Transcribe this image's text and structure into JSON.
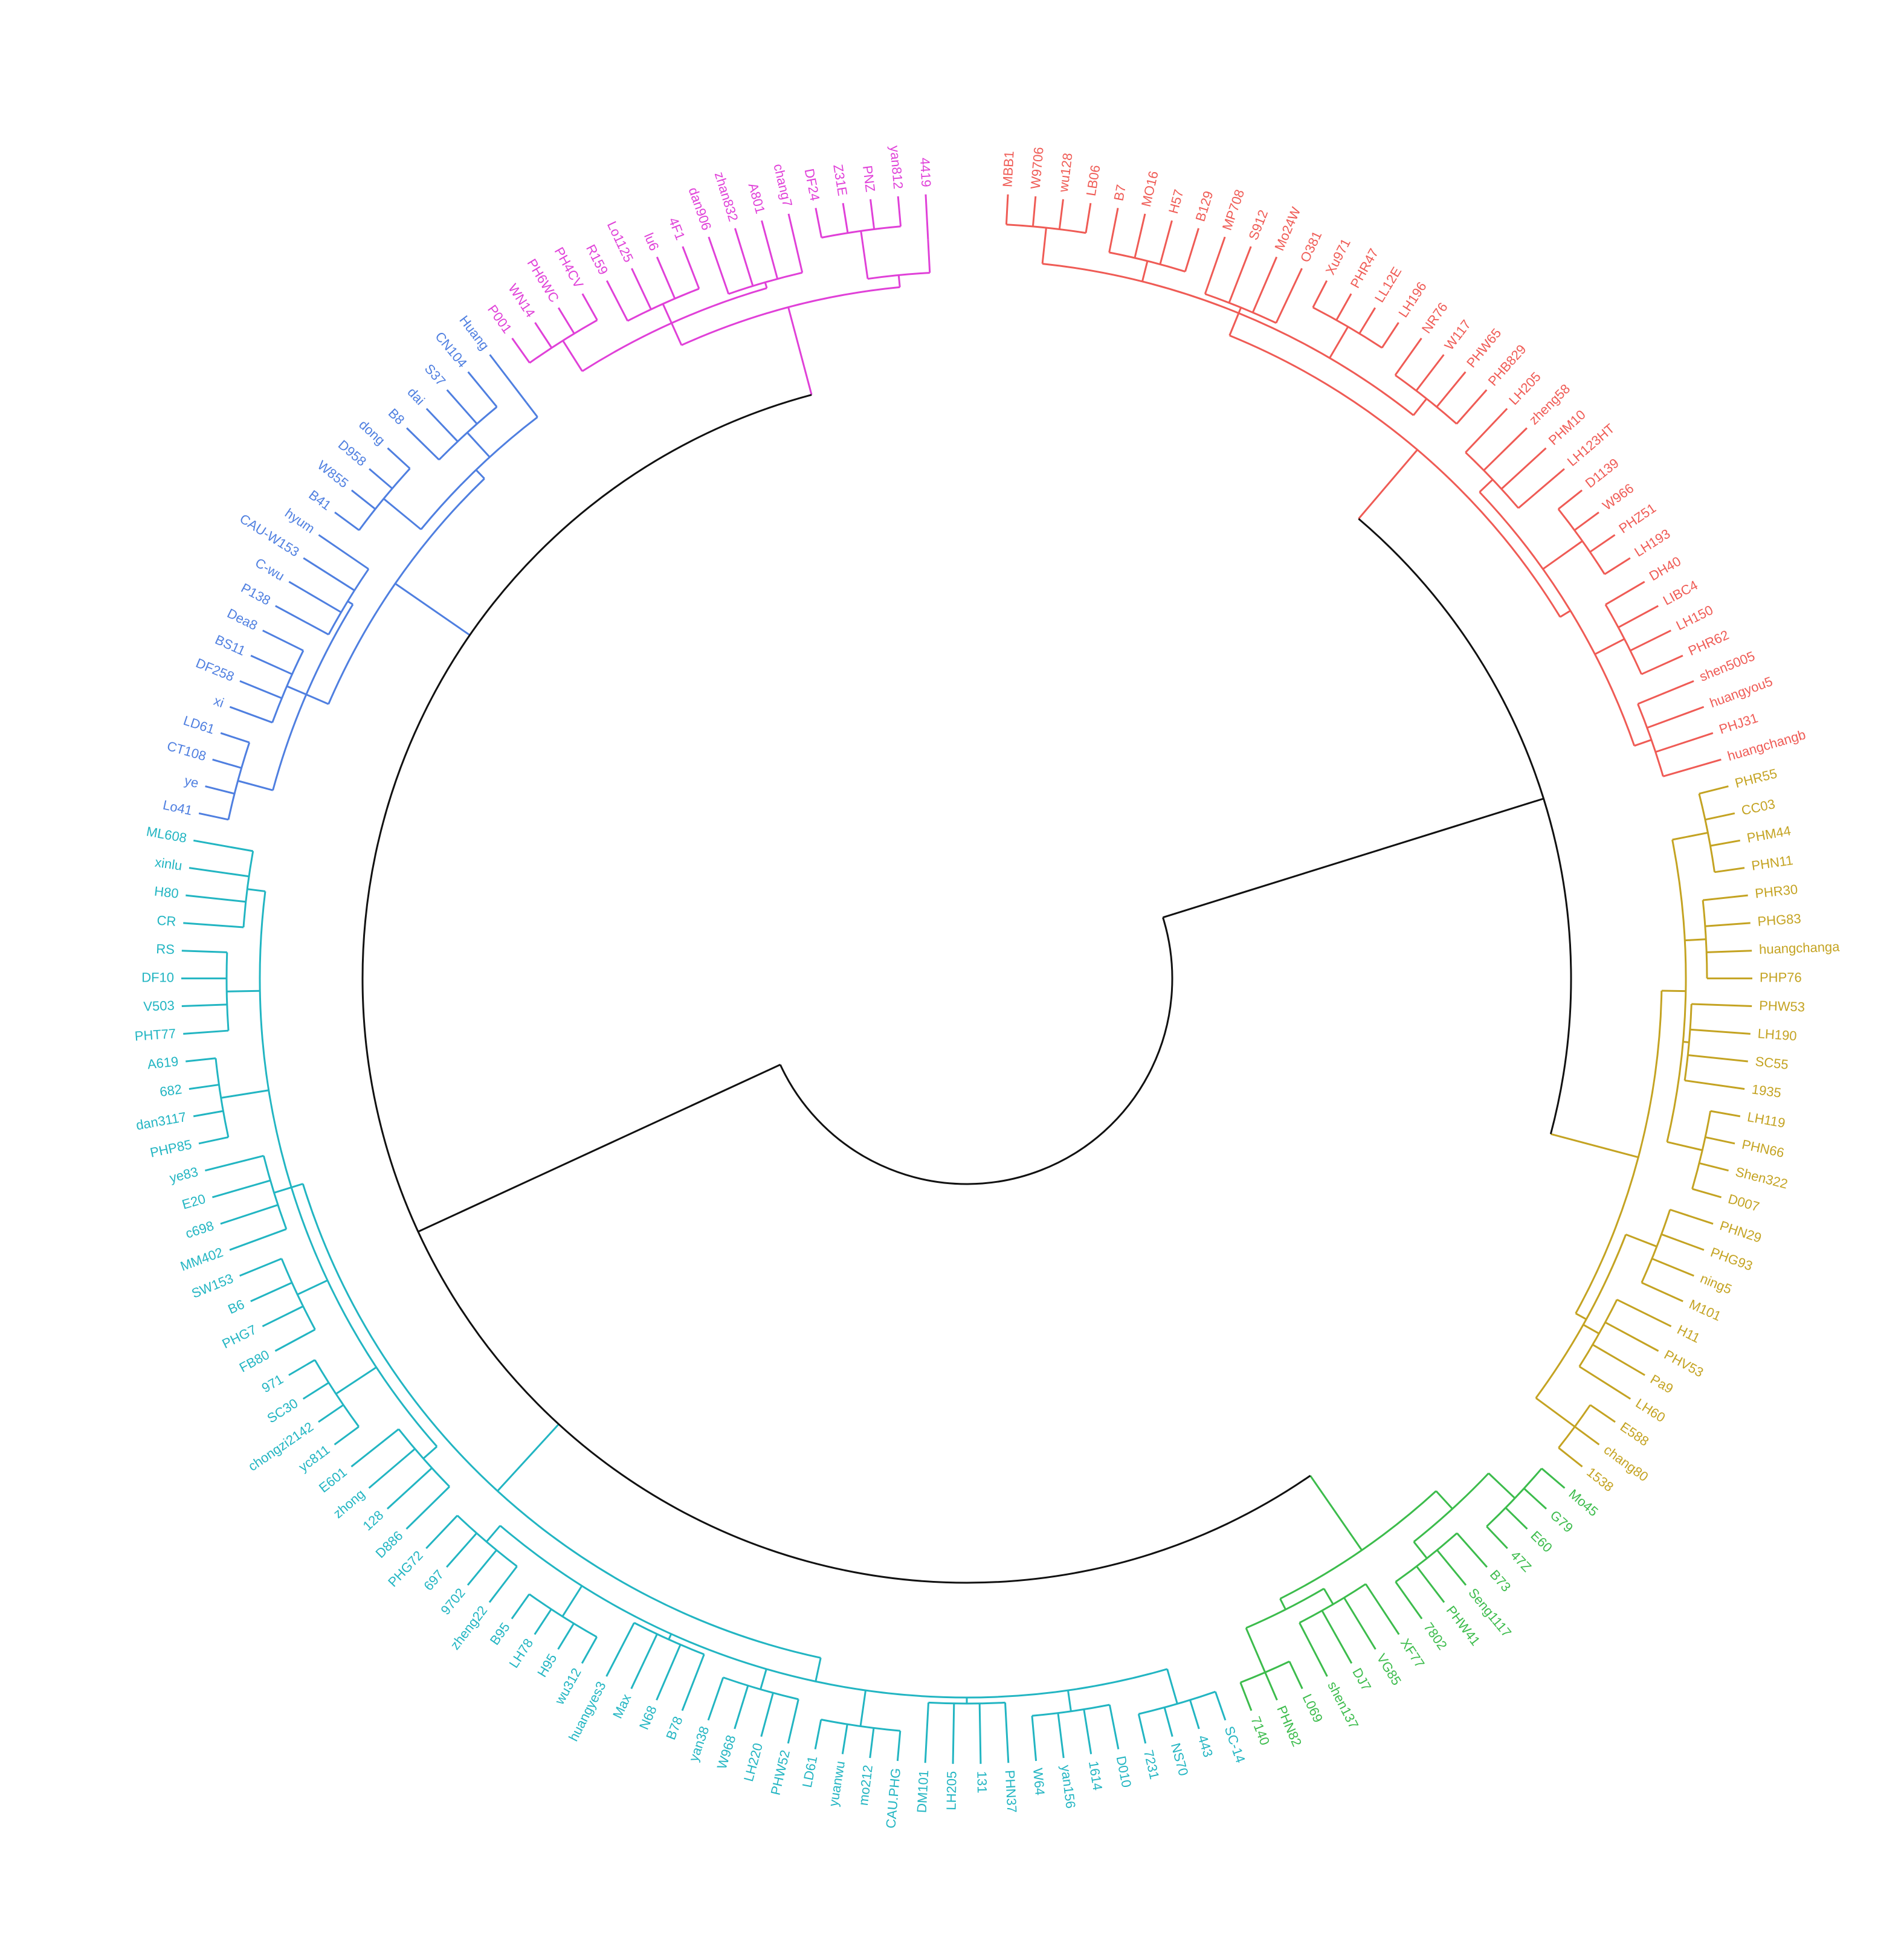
{
  "chart_data": {
    "type": "dendrogram",
    "clusters": [
      {
        "color": "#ef5b55",
        "labels": [
          "MBB1",
          "W9706",
          "wu128",
          "LB06",
          "B7",
          "MO16",
          "H57",
          "B129",
          "MP708",
          "S912",
          "Mo24W",
          "O381",
          "Xu971",
          "PHR47",
          "LL12E",
          "LH196",
          "NR76",
          "W117",
          "PHW65",
          "PHB829",
          "LH205",
          "zheng58",
          "PHM10",
          "LH123HT",
          "D1139",
          "W966",
          "PHZ51",
          "LH193",
          "DH40",
          "LIBC4",
          "LH150",
          "PHR62",
          "shen5005",
          "huangyou5",
          "PHJ31",
          "huangchangb"
        ]
      },
      {
        "color": "#c4a322",
        "labels": [
          "PHR55",
          "CC03",
          "PHM44",
          "PHN11",
          "PHR30",
          "PHG83",
          "huangchanga",
          "PHP76",
          "PHW53",
          "LH190",
          "SC55",
          "1935",
          "LH119",
          "PHN66",
          "Shen322",
          "D007",
          "PHN29",
          "PHG93",
          "ning5",
          "M101",
          "H11",
          "PHV53",
          "Pa9",
          "LH60",
          "E588",
          "chang80",
          "1538"
        ]
      },
      {
        "color": "#3cbc4c",
        "labels": [
          "Mo45",
          "G79",
          "E60",
          "47Z",
          "B73",
          "Seng1117",
          "PHW41",
          "7802",
          "XF77",
          "VG85",
          "DJ7",
          "shen137",
          "L069",
          "PHN82",
          "7140"
        ]
      },
      {
        "color": "#22b5c2",
        "labels": [
          "SC-14",
          "443",
          "NS70",
          "7231",
          "D010",
          "1614",
          "yan156",
          "W64",
          "PHN37",
          "131",
          "LH205",
          "DM101",
          "CAU.PHG",
          "mo212",
          "yuanwu",
          "LD61",
          "PHW52",
          "LH220",
          "W968",
          "yan38",
          "B78",
          "N68",
          "Max",
          "huangyes3",
          "wu312",
          "H95",
          "LH78",
          "B95",
          "zheng22",
          "9702",
          "697",
          "PHG72",
          "D886",
          "128",
          "zhong",
          "E601",
          "yc811",
          "chongzi2142",
          "SC30",
          "971",
          "FB80",
          "PHG7",
          "B6",
          "SW153",
          "MM402",
          "c698",
          "E20",
          "ye83",
          "PHP85",
          "dan3117",
          "682",
          "A619",
          "PHT77",
          "V503",
          "DF10",
          "RS",
          "CR",
          "H80",
          "xinlu",
          "ML608"
        ]
      },
      {
        "color": "#4f7fe0",
        "labels": [
          "Lo41",
          "ye",
          "CT108",
          "LD61",
          "xi",
          "DF258",
          "BS11",
          "Dea8",
          "P138",
          "C-wu",
          "CAU-W153",
          "hyum",
          "B41",
          "W855",
          "D958",
          "dong",
          "B8",
          "dai",
          "S37",
          "CN104",
          "Huang"
        ]
      },
      {
        "color": "#e040d8",
        "labels": [
          "P001",
          "WN14",
          "PH6WC",
          "PH4CV",
          "R159",
          "Lo1125",
          "lu6",
          "4F1",
          "dan906",
          "zhan832",
          "A801",
          "chang7",
          "DF24",
          "Z31E",
          "PNZ",
          "yan812",
          "4419"
        ]
      }
    ]
  }
}
